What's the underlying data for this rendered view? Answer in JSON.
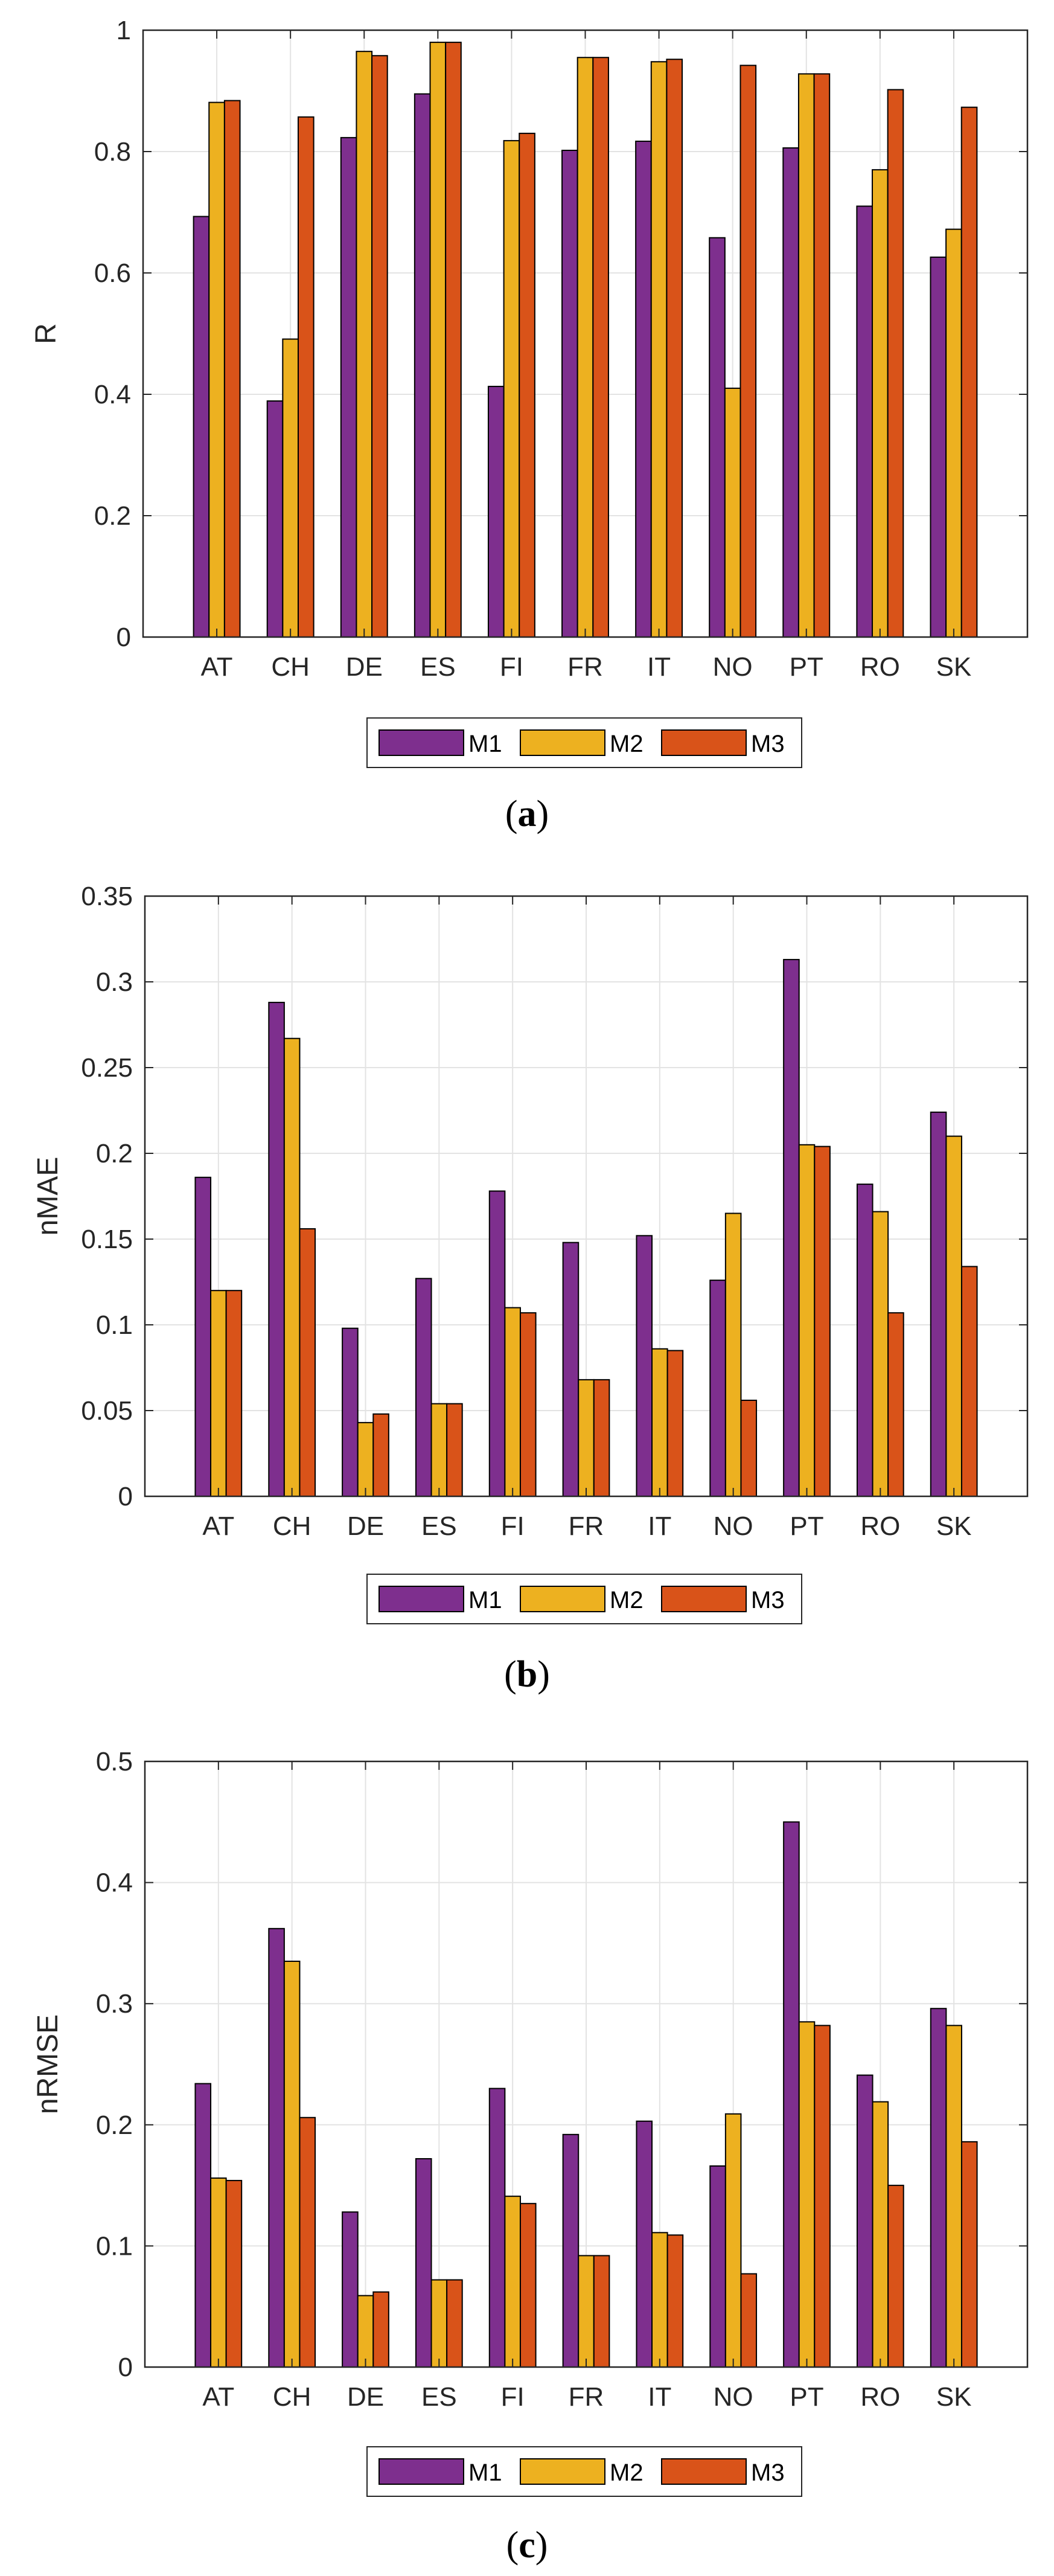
{
  "colors": {
    "M1": "#7e2f8e",
    "M2": "#edb120",
    "M3": "#d95319",
    "grid": "#e3e3e3",
    "axis": "#262626"
  },
  "chart_data": [
    {
      "type": "bar",
      "caption_open": "(",
      "caption_letter": "a",
      "caption_close": ")",
      "ylabel": "R",
      "ylim": [
        0,
        1
      ],
      "ytick_labels": [
        "0",
        "0.2",
        "0.4",
        "0.6",
        "0.8",
        "1"
      ],
      "categories": [
        "AT",
        "CH",
        "DE",
        "ES",
        "FI",
        "FR",
        "IT",
        "NO",
        "PT",
        "RO",
        "SK"
      ],
      "series": [
        {
          "name": "M1",
          "values": [
            0.693,
            0.389,
            0.823,
            0.895,
            0.413,
            0.802,
            0.817,
            0.658,
            0.806,
            0.71,
            0.626
          ]
        },
        {
          "name": "M2",
          "values": [
            0.881,
            0.491,
            0.965,
            0.98,
            0.818,
            0.955,
            0.948,
            0.41,
            0.928,
            0.77,
            0.672
          ]
        },
        {
          "name": "M3",
          "values": [
            0.884,
            0.857,
            0.958,
            0.98,
            0.83,
            0.955,
            0.952,
            0.942,
            0.928,
            0.902,
            0.873
          ]
        }
      ],
      "legend": [
        "M1",
        "M2",
        "M3"
      ]
    },
    {
      "type": "bar",
      "caption_open": "(",
      "caption_letter": "b",
      "caption_close": ")",
      "ylabel": "nMAE",
      "ylim": [
        0,
        0.35
      ],
      "ytick_labels": [
        "0",
        "0.05",
        "0.1",
        "0.15",
        "0.2",
        "0.25",
        "0.3",
        "0.35"
      ],
      "categories": [
        "AT",
        "CH",
        "DE",
        "ES",
        "FI",
        "FR",
        "IT",
        "NO",
        "PT",
        "RO",
        "SK"
      ],
      "series": [
        {
          "name": "M1",
          "values": [
            0.186,
            0.288,
            0.098,
            0.127,
            0.178,
            0.148,
            0.152,
            0.126,
            0.313,
            0.182,
            0.224
          ]
        },
        {
          "name": "M2",
          "values": [
            0.12,
            0.267,
            0.043,
            0.054,
            0.11,
            0.068,
            0.086,
            0.165,
            0.205,
            0.166,
            0.21
          ]
        },
        {
          "name": "M3",
          "values": [
            0.12,
            0.156,
            0.048,
            0.054,
            0.107,
            0.068,
            0.085,
            0.056,
            0.204,
            0.107,
            0.134
          ]
        }
      ],
      "legend": [
        "M1",
        "M2",
        "M3"
      ]
    },
    {
      "type": "bar",
      "caption_open": "(",
      "caption_letter": "c",
      "caption_close": ")",
      "ylabel": "nRMSE",
      "ylim": [
        0,
        0.5
      ],
      "ytick_labels": [
        "0",
        "0.1",
        "0.2",
        "0.3",
        "0.4",
        "0.5"
      ],
      "categories": [
        "AT",
        "CH",
        "DE",
        "ES",
        "FI",
        "FR",
        "IT",
        "NO",
        "PT",
        "RO",
        "SK"
      ],
      "series": [
        {
          "name": "M1",
          "values": [
            0.234,
            0.362,
            0.128,
            0.172,
            0.23,
            0.192,
            0.203,
            0.166,
            0.45,
            0.241,
            0.296
          ]
        },
        {
          "name": "M2",
          "values": [
            0.156,
            0.335,
            0.059,
            0.072,
            0.141,
            0.092,
            0.111,
            0.209,
            0.285,
            0.219,
            0.282
          ]
        },
        {
          "name": "M3",
          "values": [
            0.154,
            0.206,
            0.062,
            0.072,
            0.135,
            0.092,
            0.109,
            0.077,
            0.282,
            0.15,
            0.186
          ]
        }
      ],
      "legend": [
        "M1",
        "M2",
        "M3"
      ]
    }
  ]
}
